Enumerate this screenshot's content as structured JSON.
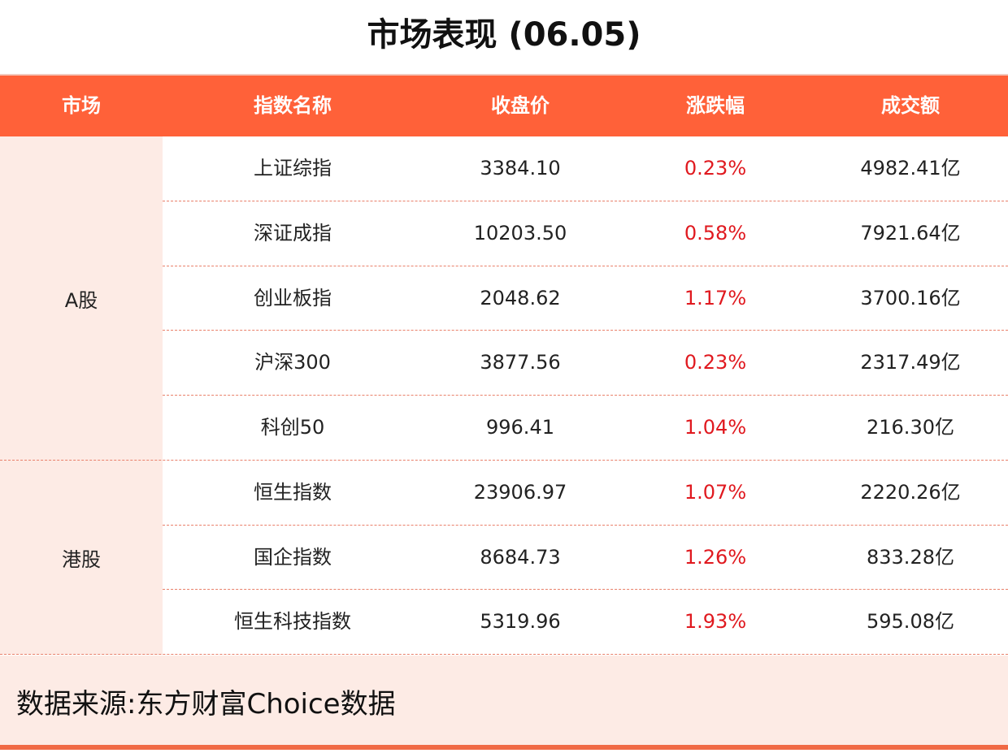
{
  "title": "市场表现 (06.05)",
  "headers": [
    "市场",
    "指数名称",
    "收盘价",
    "涨跌幅",
    "成交额"
  ],
  "colors": {
    "header": "#ff6139",
    "market_bg": "#fdebe5",
    "change": "#e0191f"
  },
  "groups": [
    {
      "market": "A股",
      "rows": [
        {
          "name": "上证综指",
          "close": "3384.10",
          "change": "0.23%",
          "volume": "4982.41亿"
        },
        {
          "name": "深证成指",
          "close": "10203.50",
          "change": "0.58%",
          "volume": "7921.64亿"
        },
        {
          "name": "创业板指",
          "close": "2048.62",
          "change": "1.17%",
          "volume": "3700.16亿"
        },
        {
          "name": "沪深300",
          "close": "3877.56",
          "change": "0.23%",
          "volume": "2317.49亿"
        },
        {
          "name": "科创50",
          "close": "996.41",
          "change": "1.04%",
          "volume": "216.30亿"
        }
      ]
    },
    {
      "market": "港股",
      "rows": [
        {
          "name": "恒生指数",
          "close": "23906.97",
          "change": "1.07%",
          "volume": "2220.26亿"
        },
        {
          "name": "国企指数",
          "close": "8684.73",
          "change": "1.26%",
          "volume": "833.28亿"
        },
        {
          "name": "恒生科技指数",
          "close": "5319.96",
          "change": "1.93%",
          "volume": "595.08亿"
        }
      ]
    }
  ],
  "footer": "数据来源:东方财富Choice数据"
}
